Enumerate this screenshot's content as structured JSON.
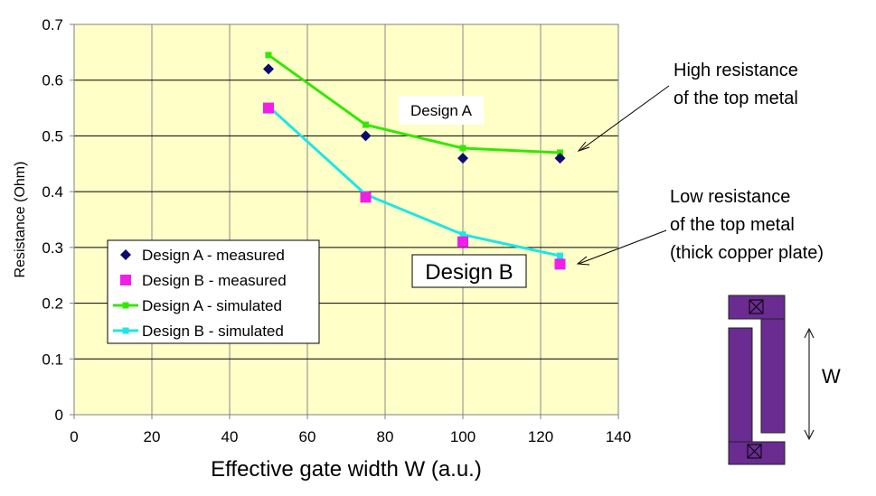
{
  "chart_data": {
    "type": "line",
    "xlabel": "Effective gate width W (a.u.)",
    "ylabel": "Resistance (Ohm)",
    "xlim": [
      0,
      140
    ],
    "ylim": [
      0,
      0.7
    ],
    "x_ticks": [
      "0",
      "20",
      "40",
      "60",
      "80",
      "100",
      "120",
      "140"
    ],
    "y_ticks": [
      "0",
      "0.1",
      "0.2",
      "0.3",
      "0.4",
      "0.5",
      "0.6",
      "0.7"
    ],
    "grid": "horizontal and vertical major gridlines",
    "plot_background": "#FFFFC8",
    "legend_position": "lower-left inside plot",
    "series": [
      {
        "name": "Design A - measured",
        "kind": "markers",
        "marker": "diamond",
        "color": "#0C0C6E",
        "x": [
          50,
          75,
          100,
          125
        ],
        "y": [
          0.62,
          0.5,
          0.46,
          0.46
        ]
      },
      {
        "name": "Design B - measured",
        "kind": "markers",
        "marker": "square",
        "color": "#F01EE6",
        "x": [
          50,
          75,
          100,
          125
        ],
        "y": [
          0.55,
          0.39,
          0.31,
          0.27
        ]
      },
      {
        "name": "Design A - simulated",
        "kind": "line",
        "marker": "small-square",
        "color": "#33E800",
        "x": [
          50,
          75,
          100,
          125
        ],
        "y": [
          0.645,
          0.52,
          0.478,
          0.47
        ]
      },
      {
        "name": "Design B - simulated",
        "kind": "line",
        "marker": "small-square",
        "color": "#1EE6E6",
        "x": [
          50,
          75,
          100,
          125
        ],
        "y": [
          0.553,
          0.395,
          0.323,
          0.285
        ]
      }
    ],
    "annotations": {
      "design_a_label": "Design A",
      "design_b_label": "Design B",
      "high_note_line1": "High resistance",
      "high_note_line2": "of the top metal",
      "low_note_line1": "Low resistance",
      "low_note_line2": "of the top metal",
      "low_note_line3": "(thick copper plate)",
      "w_label": "W"
    }
  },
  "colors": {
    "device_fill": "#6A2C91",
    "arrow": "#000000"
  }
}
